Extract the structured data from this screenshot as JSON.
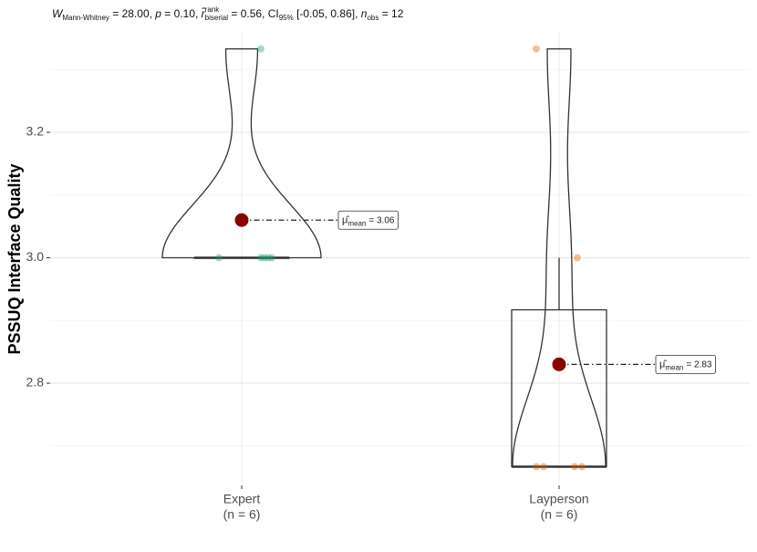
{
  "chart_data": {
    "type": "violin",
    "subtitle": [
      {
        "text": "W",
        "italic": true,
        "sub": "Mann-Whitney"
      },
      {
        "text": " = 28.00, "
      },
      {
        "text": "p",
        "italic": true
      },
      {
        "text": " = 0.10, "
      },
      {
        "text": "r̂",
        "italic": true,
        "sup": "rank",
        "sub": "biserial"
      },
      {
        "text": " = 0.56, CI",
        "sub": "95%"
      },
      {
        "text": " [-0.05, 0.86], "
      },
      {
        "text": "n",
        "italic": true,
        "sub": "obs"
      },
      {
        "text": " = 12"
      }
    ],
    "y_label": "PSSUQ Interface Quality",
    "categories": [
      "Expert",
      "Layperson"
    ],
    "category_counts": [
      "(n = 6)",
      "(n = 6)"
    ],
    "series": [
      {
        "color": "#1b9e77",
        "values": [
          3.333,
          3,
          3,
          3,
          3,
          3
        ],
        "box": {
          "lower_whisker": 3,
          "q1": 3,
          "median": 3,
          "q3": 3,
          "upper_whisker": 3
        },
        "mean": 3.06,
        "mean_label": "= 3.06"
      },
      {
        "color": "#d95f02",
        "values": [
          3.333,
          3,
          2.667,
          2.667,
          2.667,
          2.667
        ],
        "box": {
          "lower_whisker": 2.667,
          "q1": 2.667,
          "median": 2.667,
          "q3": 2.917,
          "upper_whisker": 3
        },
        "mean": 2.83,
        "mean_label": "= 2.83"
      }
    ],
    "mean_symbol": "μ̂",
    "mean_subscript": "mean",
    "mean_color": "#8b0000",
    "ylim": [
      2.64,
      3.36
    ],
    "yticks": [
      2.8,
      {
        "value": 3,
        "label": "3.0"
      },
      3.2
    ],
    "grid": true
  }
}
